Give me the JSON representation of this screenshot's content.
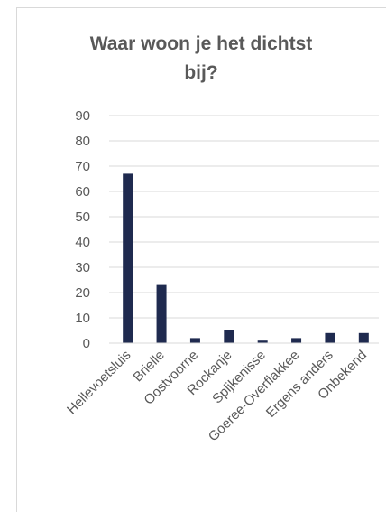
{
  "chart_data": {
    "type": "bar",
    "title_lines": [
      "Waar woon je het dichtst",
      "bij?"
    ],
    "categories": [
      "Hellevoetsluis",
      "Brielle",
      "Oostvoorne",
      "Rockanje",
      "Spijkenisse",
      "Goeree-Overflakkee",
      "Ergens anders",
      "Onbekend"
    ],
    "values": [
      67,
      23,
      2,
      5,
      1,
      2,
      4,
      4
    ],
    "ylim": [
      0,
      90
    ],
    "yticks": [
      0,
      10,
      20,
      30,
      40,
      50,
      60,
      70,
      80,
      90
    ],
    "ytick_labels": [
      "0",
      "10",
      "20",
      "30",
      "40",
      "50",
      "60",
      "70",
      "80",
      "90"
    ],
    "grid": true,
    "bar_color": "#1f2a4f",
    "grid_color": "#d9d9d9",
    "text_color": "#595959"
  }
}
